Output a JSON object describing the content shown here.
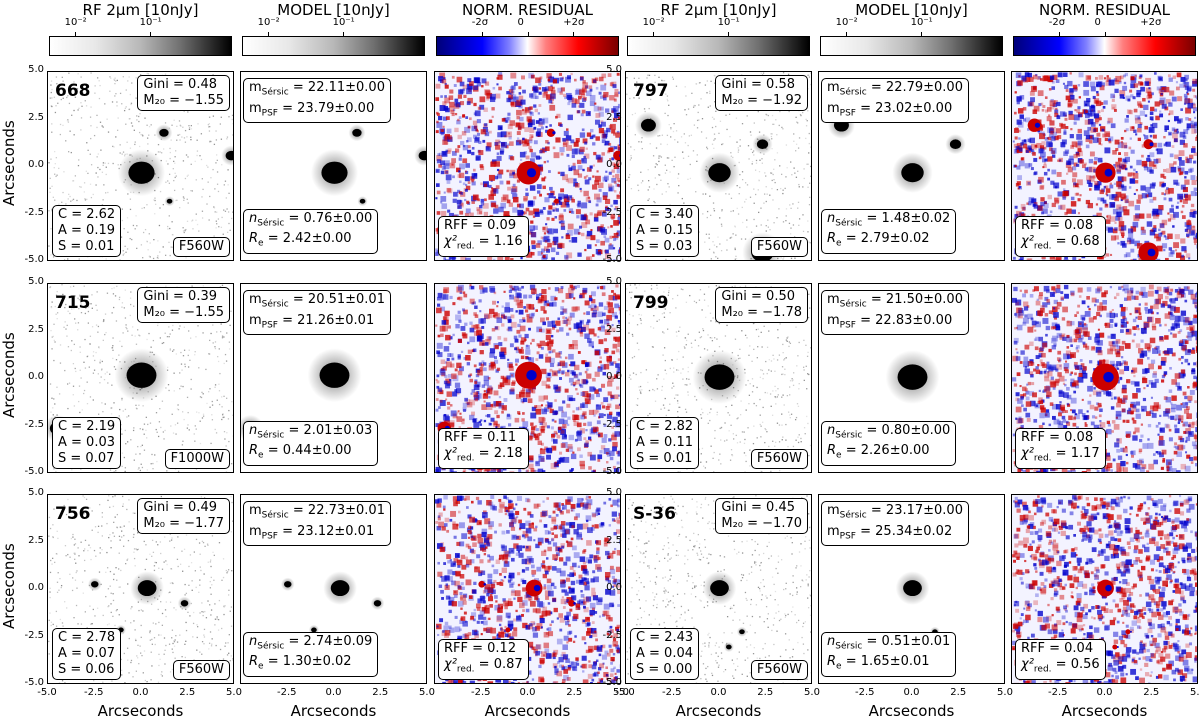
{
  "figure": {
    "columns": [
      {
        "title": "RF 2μm [10nJy]",
        "colorbar": "gray",
        "ticks": [
          "10⁻²",
          "10⁻¹"
        ]
      },
      {
        "title": "MODEL [10nJy]",
        "colorbar": "gray",
        "ticks": [
          "10⁻²",
          "10⁻¹"
        ]
      },
      {
        "title": "NORM. RESIDUAL",
        "colorbar": "diverging",
        "ticks": [
          "-2σ",
          "0",
          "+2σ"
        ]
      },
      {
        "title": "RF 2μm [10nJy]",
        "colorbar": "gray",
        "ticks": [
          "10⁻²",
          "10⁻¹"
        ]
      },
      {
        "title": "MODEL [10nJy]",
        "colorbar": "gray",
        "ticks": [
          "10⁻²",
          "10⁻¹"
        ]
      },
      {
        "title": "NORM. RESIDUAL",
        "colorbar": "diverging",
        "ticks": [
          "-2σ",
          "0",
          "+2σ"
        ]
      }
    ],
    "axis_label": "Arcseconds",
    "y_ticks": [
      "5.0",
      "2.5",
      "0.0",
      "-2.5",
      "-5.0"
    ],
    "x_ticks": [
      "-5.0",
      "-2.5",
      "0.0",
      "2.5",
      "5.0"
    ],
    "x_ticks_last": [
      "-5.0",
      "-2.5",
      "0.0",
      "2.5",
      "5.0"
    ],
    "objects": [
      {
        "name": "668",
        "gini": "Gini = 0.48",
        "m20": "M₂₀ = −1.55",
        "C": "C = 2.62",
        "A": "A = 0.19",
        "S": "S = 0.01",
        "filter": "F560W",
        "msersic": "m_Sérsic = 22.11±0.00",
        "mpsf": "m_PSF = 23.79±0.00",
        "nsersic": "n_Sérsic = 0.76±0.00",
        "re": "R_e = 2.42±0.00",
        "rff": "RFF = 0.09",
        "chi2": "χ²_red. = 1.16"
      },
      {
        "name": "797",
        "gini": "Gini = 0.58",
        "m20": "M₂₀ = −1.92",
        "C": "C = 3.40",
        "A": "A = 0.15",
        "S": "S = 0.03",
        "filter": "F560W",
        "msersic": "m_Sérsic = 22.79±0.00",
        "mpsf": "m_PSF = 23.02±0.00",
        "nsersic": "n_Sérsic = 1.48±0.02",
        "re": "R_e = 2.79±0.02",
        "rff": "RFF = 0.08",
        "chi2": "χ²_red. = 0.68"
      },
      {
        "name": "715",
        "gini": "Gini = 0.39",
        "m20": "M₂₀ = −1.55",
        "C": "C = 2.19",
        "A": "A = 0.03",
        "S": "S = 0.07",
        "filter": "F1000W",
        "msersic": "m_Sérsic = 20.51±0.01",
        "mpsf": "m_PSF = 21.26±0.01",
        "nsersic": "n_Sérsic = 2.01±0.03",
        "re": "R_e = 0.44±0.00",
        "rff": "RFF = 0.11",
        "chi2": "χ²_red. = 2.18"
      },
      {
        "name": "799",
        "gini": "Gini = 0.50",
        "m20": "M₂₀ = −1.78",
        "C": "C = 2.82",
        "A": "A = 0.11",
        "S": "S = 0.01",
        "filter": "F560W",
        "msersic": "m_Sérsic = 21.50±0.00",
        "mpsf": "m_PSF = 22.83±0.00",
        "nsersic": "n_Sérsic = 0.80±0.00",
        "re": "R_e = 2.26±0.00",
        "rff": "RFF = 0.08",
        "chi2": "χ²_red. = 1.17"
      },
      {
        "name": "756",
        "gini": "Gini = 0.49",
        "m20": "M₂₀ = −1.77",
        "C": "C = 2.78",
        "A": "A = 0.07",
        "S": "S = 0.06",
        "filter": "F560W",
        "msersic": "m_Sérsic = 22.73±0.01",
        "mpsf": "m_PSF = 23.12±0.01",
        "nsersic": "n_Sérsic = 2.74±0.09",
        "re": "R_e = 1.30±0.02",
        "rff": "RFF = 0.12",
        "chi2": "χ²_red. = 0.87"
      },
      {
        "name": "S-36",
        "gini": "Gini = 0.45",
        "m20": "M₂₀ = −1.70",
        "C": "C = 2.43",
        "A": "A = 0.04",
        "S": "S = 0.00",
        "filter": "F560W",
        "msersic": "m_Sérsic = 23.17±0.00",
        "mpsf": "m_PSF = 25.34±0.02",
        "nsersic": "n_Sérsic = 0.51±0.01",
        "re": "R_e = 1.65±0.01",
        "rff": "RFF = 0.04",
        "chi2": "χ²_red. = 0.56"
      }
    ],
    "colors": {
      "positive": "#cc0000",
      "negative": "#0000cc",
      "source": "#000000"
    }
  }
}
